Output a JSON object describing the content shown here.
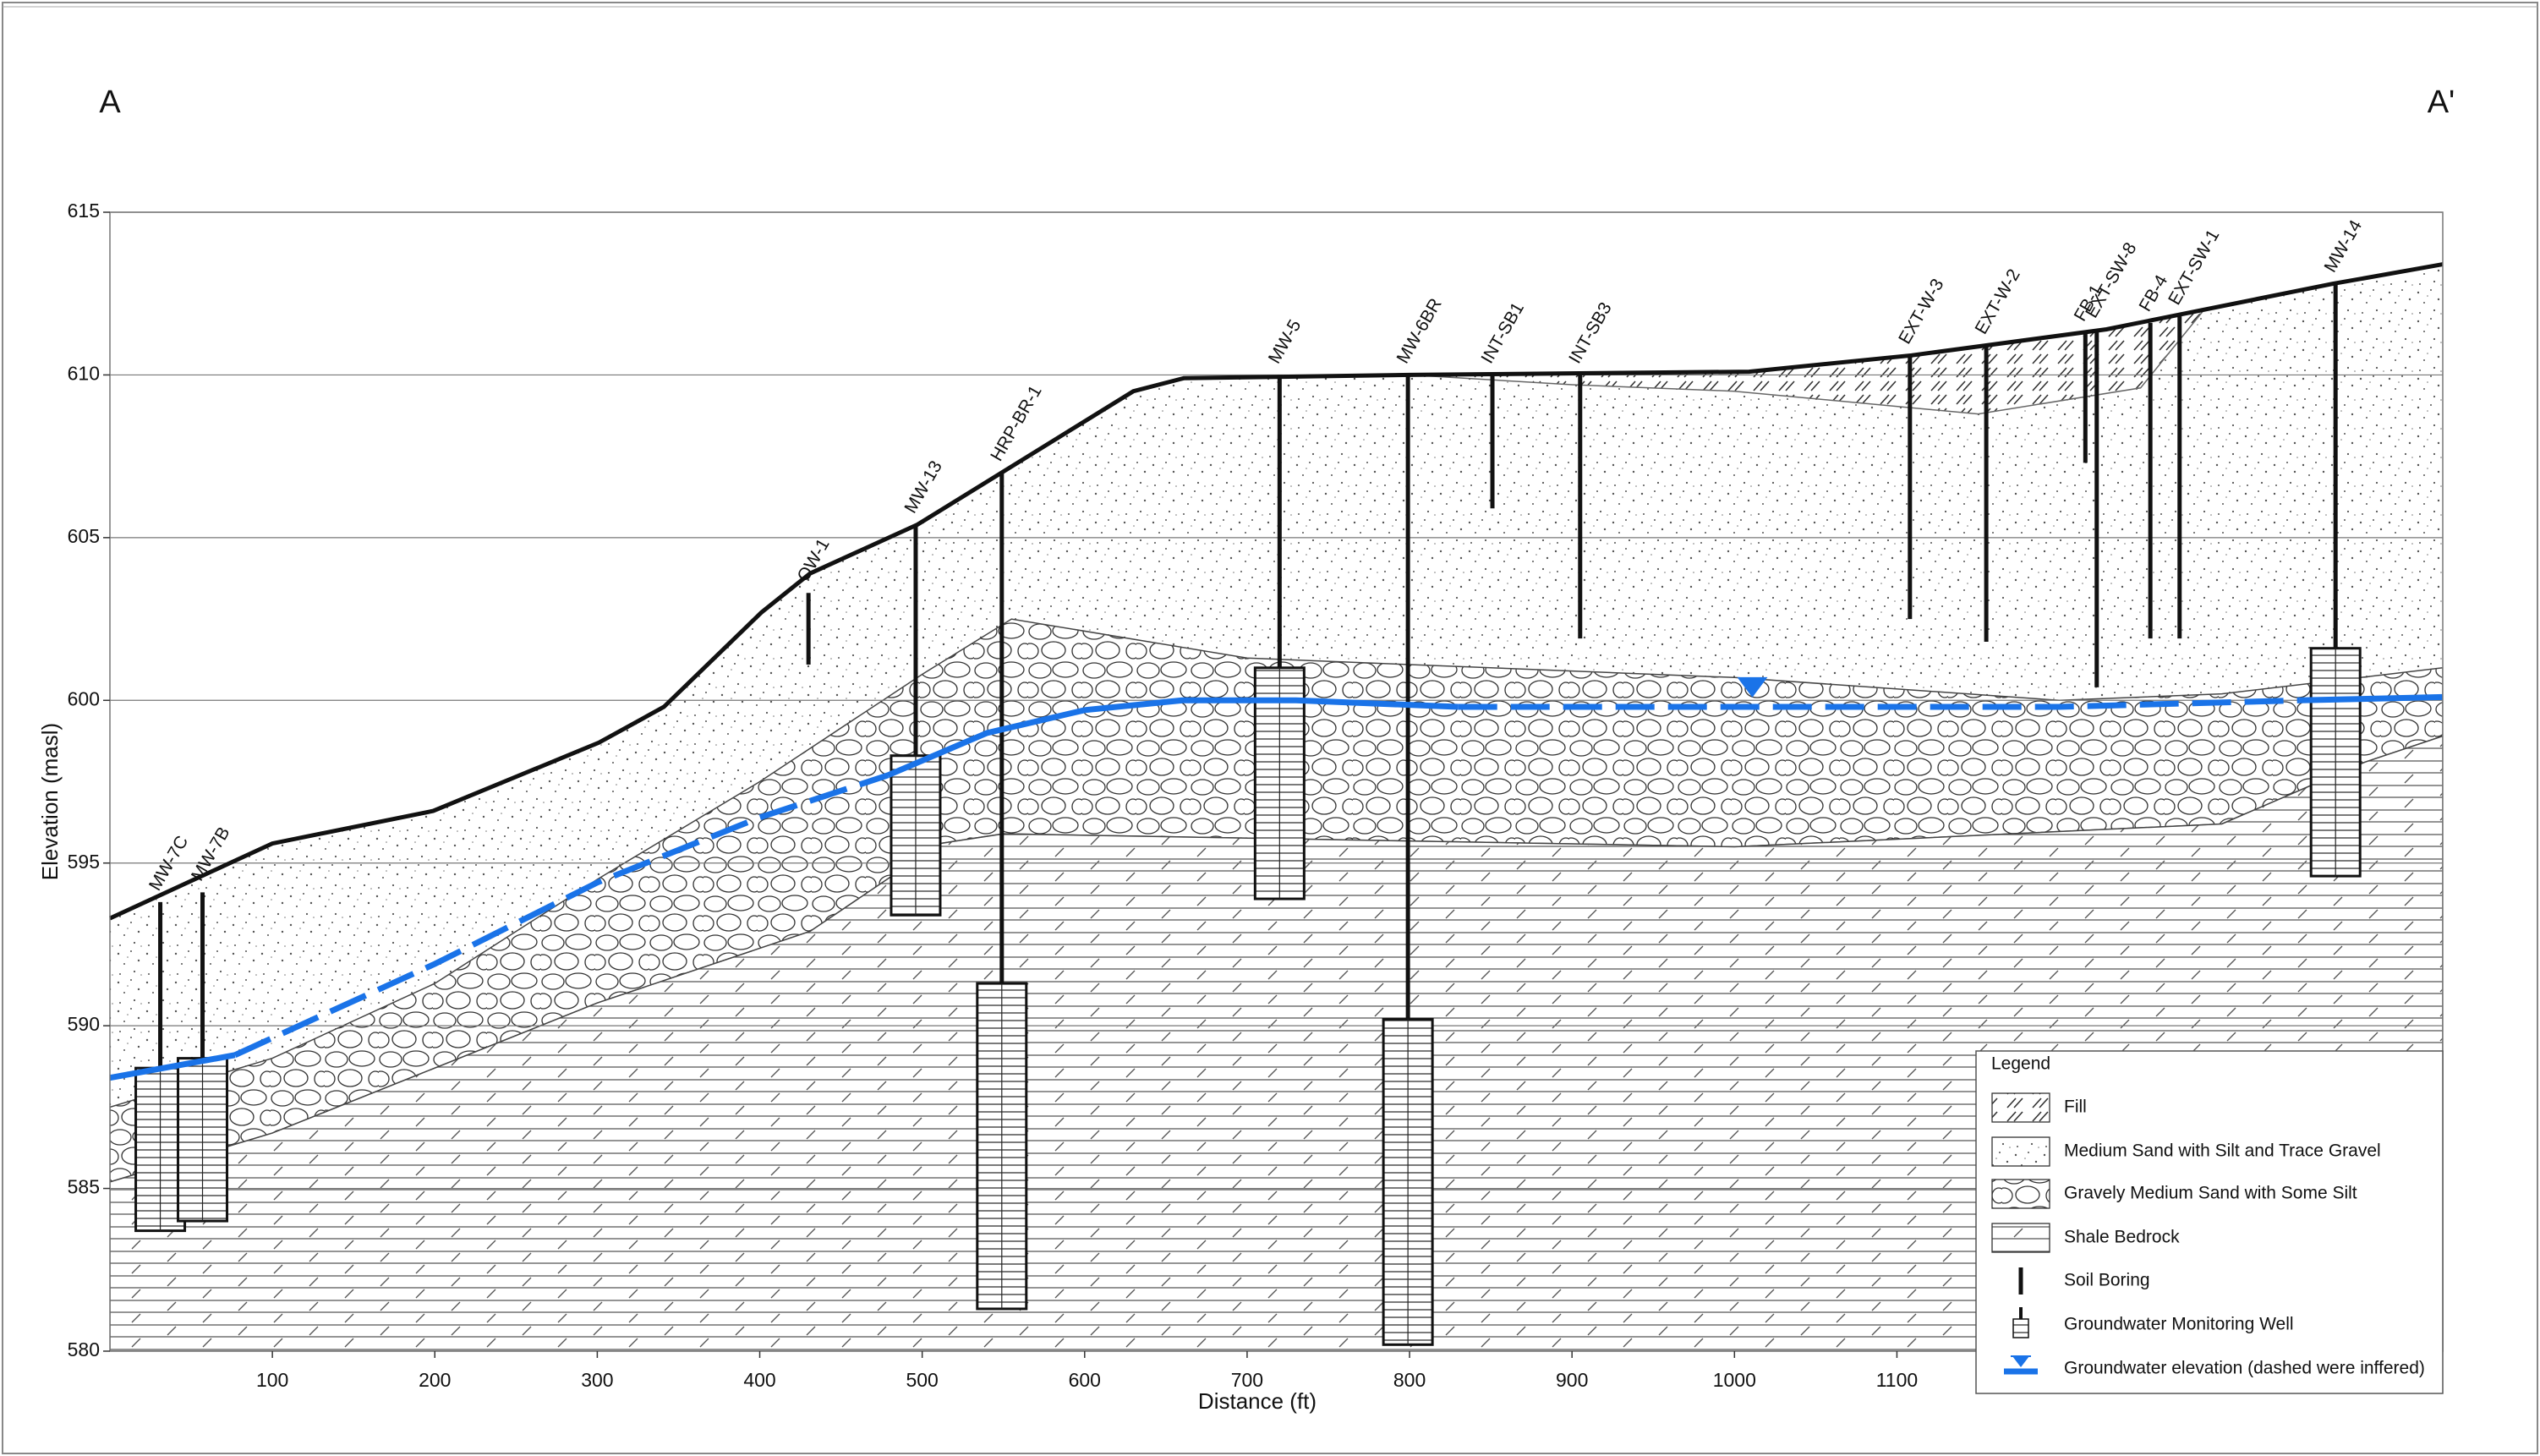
{
  "section": {
    "start_label": "A",
    "end_label": "A'"
  },
  "axes": {
    "x_label": "Distance (ft)",
    "y_label": "Elevation (masl)",
    "xlim": [
      0,
      1436
    ],
    "ylim": [
      580,
      615
    ],
    "x_ticks": [
      100,
      200,
      300,
      400,
      500,
      600,
      700,
      800,
      900,
      1000,
      1100
    ],
    "y_ticks": [
      580,
      585,
      590,
      595,
      600,
      605,
      610,
      615
    ]
  },
  "surfaces": {
    "ground": [
      [
        0,
        593.3
      ],
      [
        100,
        595.6
      ],
      [
        199,
        596.6
      ],
      [
        301,
        598.7
      ],
      [
        341,
        599.8
      ],
      [
        401,
        602.7
      ],
      [
        431,
        603.9
      ],
      [
        497,
        605.4
      ],
      [
        549,
        607.0
      ],
      [
        630,
        609.5
      ],
      [
        661,
        609.9
      ],
      [
        800,
        610.0
      ],
      [
        1009,
        610.1
      ],
      [
        1109,
        610.6
      ],
      [
        1229,
        611.4
      ],
      [
        1368,
        612.8
      ],
      [
        1436,
        613.4
      ]
    ],
    "gravel_top": [
      [
        0,
        587.5
      ],
      [
        100,
        589.0
      ],
      [
        200,
        591.3
      ],
      [
        300,
        594.5
      ],
      [
        400,
        597.5
      ],
      [
        500,
        600.8
      ],
      [
        555,
        602.5
      ],
      [
        700,
        601.3
      ],
      [
        1000,
        600.7
      ],
      [
        1200,
        600.0
      ],
      [
        1300,
        600.2
      ],
      [
        1436,
        601.0
      ]
    ],
    "gravel_bottom": [
      [
        0,
        585.2
      ],
      [
        100,
        586.7
      ],
      [
        300,
        590.7
      ],
      [
        431,
        592.9
      ],
      [
        511,
        595.6
      ],
      [
        550,
        595.9
      ],
      [
        1000,
        595.5
      ],
      [
        1300,
        596.2
      ],
      [
        1388,
        598.1
      ],
      [
        1436,
        598.9
      ]
    ],
    "fill_bottom": [
      [
        800,
        610.0
      ],
      [
        900,
        609.7
      ],
      [
        1000,
        609.5
      ],
      [
        1150,
        608.8
      ],
      [
        1250,
        609.6
      ],
      [
        1289,
        612.0
      ]
    ]
  },
  "groundwater": {
    "segments": [
      {
        "style": "solid",
        "points": [
          [
            0,
            588.4
          ],
          [
            77,
            589.1
          ]
        ]
      },
      {
        "style": "dashed",
        "points": [
          [
            77,
            589.1
          ],
          [
            200,
            591.9
          ],
          [
            300,
            594.4
          ],
          [
            400,
            596.4
          ],
          [
            479,
            597.7
          ]
        ]
      },
      {
        "style": "solid",
        "points": [
          [
            479,
            597.7
          ],
          [
            540,
            599.0
          ],
          [
            600,
            599.7
          ],
          [
            660,
            600.0
          ],
          [
            730,
            600.0
          ],
          [
            830,
            599.8
          ]
        ]
      },
      {
        "style": "dashed",
        "points": [
          [
            830,
            599.8
          ],
          [
            1000,
            599.8
          ],
          [
            1200,
            599.8
          ],
          [
            1348,
            600.0
          ]
        ]
      },
      {
        "style": "solid",
        "points": [
          [
            1348,
            600.0
          ],
          [
            1436,
            600.1
          ]
        ]
      }
    ],
    "marker": {
      "x": 1011,
      "elevation": 600.4
    }
  },
  "boreholes": [
    {
      "label": "MW-7C",
      "x": 31,
      "top": 593.8,
      "screen_top": 588.7,
      "screen_bottom": 583.7
    },
    {
      "label": "MW-7B",
      "x": 57,
      "top": 594.1,
      "screen_top": 589.0,
      "screen_bottom": 584.0
    },
    {
      "label": "OW-1",
      "x": 430,
      "top": 603.3,
      "bottom": 601.1
    },
    {
      "label": "MW-13",
      "x": 496,
      "top": 605.4,
      "screen_top": 598.3,
      "screen_bottom": 593.4
    },
    {
      "label": "HRP-BR-1",
      "x": 549,
      "top": 607.0,
      "screen_top": 591.3,
      "screen_bottom": 581.3
    },
    {
      "label": "MW-5",
      "x": 720,
      "top": 610.0,
      "screen_top": 601.0,
      "screen_bottom": 593.9
    },
    {
      "label": "MW-6BR",
      "x": 799,
      "top": 610.0,
      "screen_top": 590.2,
      "screen_bottom": 580.2
    },
    {
      "label": "INT-SB1",
      "x": 851,
      "top": 610.0,
      "bottom": 605.9
    },
    {
      "label": "INT-SB3",
      "x": 905,
      "top": 610.0,
      "bottom": 601.9
    },
    {
      "label": "EXT-W-3",
      "x": 1108,
      "top": 610.6,
      "bottom": 602.5
    },
    {
      "label": "EXT-W-2",
      "x": 1155,
      "top": 610.9,
      "bottom": 601.8
    },
    {
      "label": "FB-1",
      "x": 1216,
      "top": 611.3,
      "bottom": 607.3
    },
    {
      "label": "EXT-SW-8",
      "x": 1223,
      "top": 611.4,
      "bottom": 600.4
    },
    {
      "label": "FB-4",
      "x": 1256,
      "top": 611.6,
      "bottom": 601.9
    },
    {
      "label": "EXT-SW-1",
      "x": 1274,
      "top": 611.8,
      "bottom": 601.9
    },
    {
      "label": "MW-14",
      "x": 1370,
      "top": 612.8,
      "screen_top": 601.6,
      "screen_bottom": 594.6
    }
  ],
  "legend": {
    "title": "Legend",
    "items": [
      "Fill",
      "Medium Sand with Silt and Trace Gravel",
      "Gravely Medium Sand with Some Silt",
      "Shale Bedrock",
      "Soil Boring",
      "Groundwater Monitoring Well",
      "Groundwater elevation (dashed were inffered)"
    ]
  }
}
